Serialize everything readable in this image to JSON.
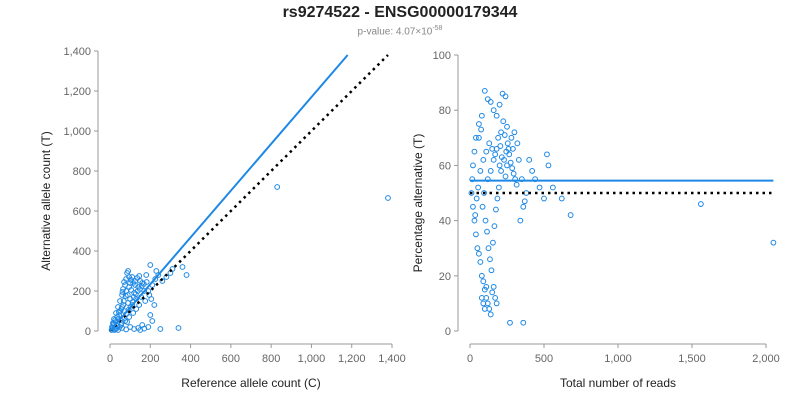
{
  "title": "rs9274522 - ENSG00000179344",
  "subtitle": {
    "prefix": "p-value: 4.07×10",
    "exponent": "-58"
  },
  "colors": {
    "points": "#1e88e5",
    "fit": "#1e88e5",
    "reference": "#000000",
    "axis": "#999999",
    "text": "#666666"
  },
  "chart_data": [
    {
      "type": "scatter",
      "name": "counts",
      "xlabel": "Reference allele count (C)",
      "ylabel": "Alternative allele count (T)",
      "xlim": [
        0,
        1400
      ],
      "ylim": [
        0,
        1400
      ],
      "xticks": [
        0,
        200,
        400,
        600,
        800,
        1000,
        1200,
        1400
      ],
      "xtick_labels": [
        "0",
        "200",
        "400",
        "600",
        "800",
        "1,000",
        "1,200",
        "1,400"
      ],
      "yticks": [
        0,
        200,
        400,
        600,
        800,
        1000,
        1200,
        1400
      ],
      "ytick_labels": [
        "0",
        "200",
        "400",
        "600",
        "800",
        "1,000",
        "1,200",
        "1,400"
      ],
      "fit_line": {
        "x": [
          0,
          1180
        ],
        "y": [
          0,
          1380
        ]
      },
      "reference_line": {
        "x": [
          0,
          1380
        ],
        "y": [
          0,
          1380
        ]
      },
      "points": [
        [
          830,
          720
        ],
        [
          1380,
          665
        ],
        [
          340,
          15
        ],
        [
          250,
          10
        ],
        [
          360,
          320
        ],
        [
          380,
          280
        ],
        [
          200,
          330
        ],
        [
          180,
          280
        ],
        [
          150,
          250
        ],
        [
          90,
          300
        ],
        [
          100,
          240
        ],
        [
          80,
          200
        ],
        [
          60,
          180
        ],
        [
          50,
          150
        ],
        [
          40,
          120
        ],
        [
          30,
          90
        ],
        [
          20,
          60
        ],
        [
          15,
          40
        ],
        [
          10,
          20
        ],
        [
          25,
          10
        ],
        [
          40,
          5
        ],
        [
          60,
          15
        ],
        [
          80,
          8
        ],
        [
          100,
          20
        ],
        [
          120,
          10
        ],
        [
          140,
          15
        ],
        [
          160,
          30
        ],
        [
          70,
          100
        ],
        [
          110,
          130
        ],
        [
          130,
          160
        ],
        [
          90,
          140
        ],
        [
          120,
          190
        ],
        [
          140,
          220
        ],
        [
          160,
          240
        ],
        [
          170,
          200
        ],
        [
          100,
          160
        ],
        [
          60,
          120
        ],
        [
          45,
          80
        ],
        [
          75,
          50
        ],
        [
          55,
          30
        ],
        [
          35,
          25
        ],
        [
          85,
          45
        ],
        [
          95,
          70
        ],
        [
          115,
          90
        ],
        [
          130,
          110
        ],
        [
          145,
          130
        ],
        [
          155,
          170
        ],
        [
          175,
          150
        ],
        [
          190,
          200
        ],
        [
          210,
          230
        ],
        [
          225,
          260
        ],
        [
          230,
          300
        ],
        [
          240,
          280
        ],
        [
          110,
          270
        ],
        [
          80,
          260
        ],
        [
          95,
          220
        ],
        [
          75,
          230
        ],
        [
          65,
          210
        ],
        [
          88,
          180
        ],
        [
          105,
          205
        ],
        [
          125,
          230
        ],
        [
          68,
          150
        ],
        [
          52,
          100
        ],
        [
          42,
          60
        ],
        [
          28,
          45
        ],
        [
          18,
          30
        ],
        [
          12,
          15
        ],
        [
          8,
          5
        ],
        [
          22,
          5
        ],
        [
          32,
          12
        ],
        [
          48,
          20
        ],
        [
          58,
          40
        ],
        [
          72,
          65
        ],
        [
          82,
          85
        ],
        [
          92,
          105
        ],
        [
          102,
          120
        ],
        [
          112,
          145
        ],
        [
          118,
          170
        ],
        [
          128,
          185
        ],
        [
          138,
          200
        ],
        [
          148,
          210
        ],
        [
          158,
          225
        ],
        [
          168,
          235
        ],
        [
          182,
          245
        ],
        [
          85,
          290
        ],
        [
          95,
          270
        ],
        [
          105,
          255
        ],
        [
          115,
          240
        ],
        [
          125,
          250
        ],
        [
          135,
          265
        ],
        [
          145,
          275
        ],
        [
          70,
          245
        ],
        [
          62,
          195
        ],
        [
          78,
          175
        ],
        [
          66,
          130
        ],
        [
          56,
          110
        ],
        [
          44,
          95
        ],
        [
          36,
          70
        ],
        [
          26,
          55
        ],
        [
          16,
          35
        ],
        [
          150,
          5
        ],
        [
          170,
          12
        ],
        [
          190,
          20
        ],
        [
          210,
          50
        ],
        [
          200,
          80
        ],
        [
          220,
          130
        ],
        [
          205,
          160
        ],
        [
          195,
          180
        ],
        [
          260,
          250
        ],
        [
          280,
          270
        ],
        [
          300,
          290
        ],
        [
          310,
          310
        ]
      ]
    },
    {
      "type": "scatter",
      "name": "percentage",
      "xlabel": "Total number of reads",
      "ylabel": "Percentage alternative (T)",
      "xlim": [
        0,
        2000
      ],
      "ylim": [
        0,
        100
      ],
      "xticks": [
        0,
        500,
        1000,
        1500,
        2000
      ],
      "xtick_labels": [
        "0",
        "500",
        "1,000",
        "1,500",
        "2,000"
      ],
      "yticks": [
        0,
        20,
        40,
        60,
        80,
        100
      ],
      "ytick_labels": [
        "0",
        "20",
        "40",
        "60",
        "80",
        "100"
      ],
      "fit_line": {
        "x": [
          0,
          2050
        ],
        "y": [
          54.5,
          54.5
        ]
      },
      "reference_line": {
        "x": [
          0,
          2050
        ],
        "y": [
          50,
          50
        ]
      },
      "points": [
        [
          2050,
          32
        ],
        [
          1560,
          46
        ],
        [
          680,
          42
        ],
        [
          620,
          48
        ],
        [
          560,
          52
        ],
        [
          530,
          60
        ],
        [
          520,
          64
        ],
        [
          500,
          48
        ],
        [
          470,
          52
        ],
        [
          440,
          55
        ],
        [
          420,
          58
        ],
        [
          400,
          62
        ],
        [
          380,
          50
        ],
        [
          360,
          45
        ],
        [
          340,
          40
        ],
        [
          320,
          68
        ],
        [
          300,
          72
        ],
        [
          280,
          70
        ],
        [
          260,
          66
        ],
        [
          250,
          74
        ],
        [
          240,
          85
        ],
        [
          220,
          86
        ],
        [
          200,
          82
        ],
        [
          180,
          78
        ],
        [
          160,
          80
        ],
        [
          140,
          83
        ],
        [
          120,
          84
        ],
        [
          100,
          87
        ],
        [
          80,
          78
        ],
        [
          60,
          75
        ],
        [
          40,
          70
        ],
        [
          30,
          65
        ],
        [
          20,
          60
        ],
        [
          15,
          55
        ],
        [
          10,
          50
        ],
        [
          20,
          45
        ],
        [
          30,
          40
        ],
        [
          40,
          35
        ],
        [
          50,
          30
        ],
        [
          60,
          28
        ],
        [
          70,
          25
        ],
        [
          80,
          20
        ],
        [
          90,
          18
        ],
        [
          100,
          15
        ],
        [
          110,
          12
        ],
        [
          120,
          10
        ],
        [
          130,
          8
        ],
        [
          140,
          6
        ],
        [
          150,
          14
        ],
        [
          160,
          16
        ],
        [
          170,
          12
        ],
        [
          180,
          10
        ],
        [
          200,
          60
        ],
        [
          210,
          58
        ],
        [
          230,
          62
        ],
        [
          245,
          65
        ],
        [
          255,
          68
        ],
        [
          265,
          64
        ],
        [
          275,
          61
        ],
        [
          285,
          59
        ],
        [
          295,
          57
        ],
        [
          305,
          55
        ],
        [
          315,
          53
        ],
        [
          120,
          55
        ],
        [
          140,
          58
        ],
        [
          160,
          62
        ],
        [
          180,
          66
        ],
        [
          190,
          70
        ],
        [
          210,
          72
        ],
        [
          225,
          76
        ],
        [
          235,
          71
        ],
        [
          110,
          65
        ],
        [
          130,
          68
        ],
        [
          150,
          66
        ],
        [
          170,
          64
        ],
        [
          90,
          62
        ],
        [
          70,
          58
        ],
        [
          55,
          52
        ],
        [
          45,
          48
        ],
        [
          35,
          42
        ],
        [
          85,
          45
        ],
        [
          95,
          50
        ],
        [
          105,
          40
        ],
        [
          115,
          36
        ],
        [
          125,
          30
        ],
        [
          135,
          26
        ],
        [
          145,
          22
        ],
        [
          155,
          32
        ],
        [
          165,
          38
        ],
        [
          175,
          44
        ],
        [
          185,
          48
        ],
        [
          195,
          52
        ],
        [
          270,
          3
        ],
        [
          360,
          3
        ],
        [
          80,
          12
        ],
        [
          90,
          10
        ],
        [
          100,
          8
        ],
        [
          110,
          16
        ],
        [
          60,
          70
        ],
        [
          75,
          73
        ],
        [
          205,
          67
        ],
        [
          215,
          63
        ],
        [
          240,
          56
        ],
        [
          250,
          60
        ],
        [
          290,
          66
        ],
        [
          330,
          62
        ],
        [
          350,
          55
        ],
        [
          370,
          47
        ]
      ]
    }
  ]
}
